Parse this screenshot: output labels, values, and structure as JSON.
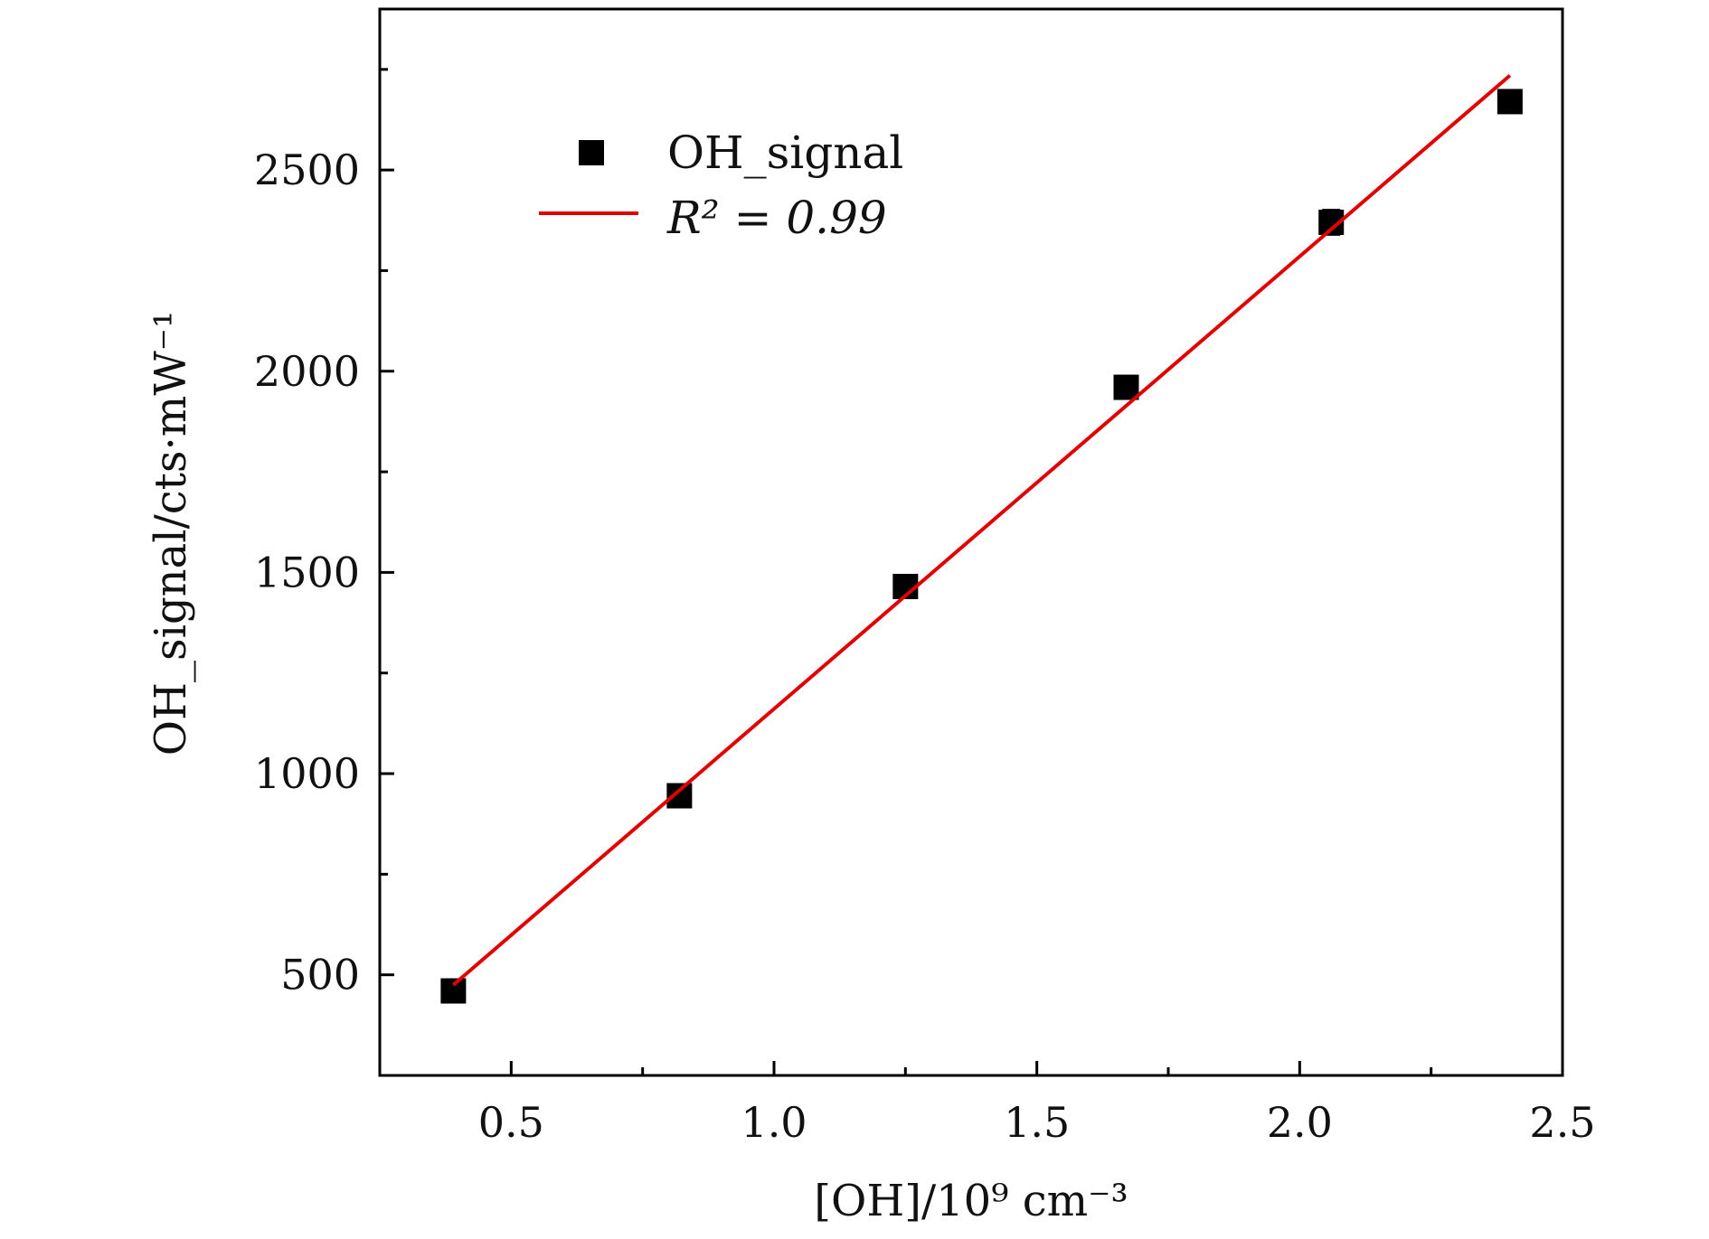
{
  "chart_data": {
    "type": "scatter",
    "xlabel": "[OH]/10⁹ cm⁻³",
    "ylabel": "OH_signal/cts·mW⁻¹",
    "xlim": [
      0.25,
      2.5
    ],
    "ylim": [
      250,
      2900
    ],
    "x_ticks": [
      0.5,
      1.0,
      1.5,
      2.0,
      2.5
    ],
    "x_tick_labels": [
      "0.5",
      "1.0",
      "1.5",
      "2.0",
      "2.5"
    ],
    "x_minor_ticks": [
      0.75,
      1.25,
      1.75,
      2.25
    ],
    "y_ticks": [
      500,
      1000,
      1500,
      2000,
      2500
    ],
    "y_tick_labels": [
      "500",
      "1000",
      "1500",
      "2000",
      "2500"
    ],
    "y_minor_ticks": [
      750,
      1250,
      1750,
      2250,
      2750
    ],
    "grid": false,
    "legend_position": "top-left",
    "series": [
      {
        "name": "OH_signal",
        "kind": "scatter",
        "marker": "square",
        "color": "#000000",
        "x": [
          0.39,
          0.82,
          1.25,
          1.67,
          2.06,
          2.4
        ],
        "y": [
          460,
          945,
          1465,
          1960,
          2370,
          2670
        ],
        "error": [
          15,
          20,
          20,
          25,
          30,
          25
        ]
      },
      {
        "name": "R² = 0.99",
        "kind": "line",
        "color": "#e00000",
        "x": [
          0.39,
          2.4
        ],
        "y": [
          475,
          2735
        ]
      }
    ]
  }
}
